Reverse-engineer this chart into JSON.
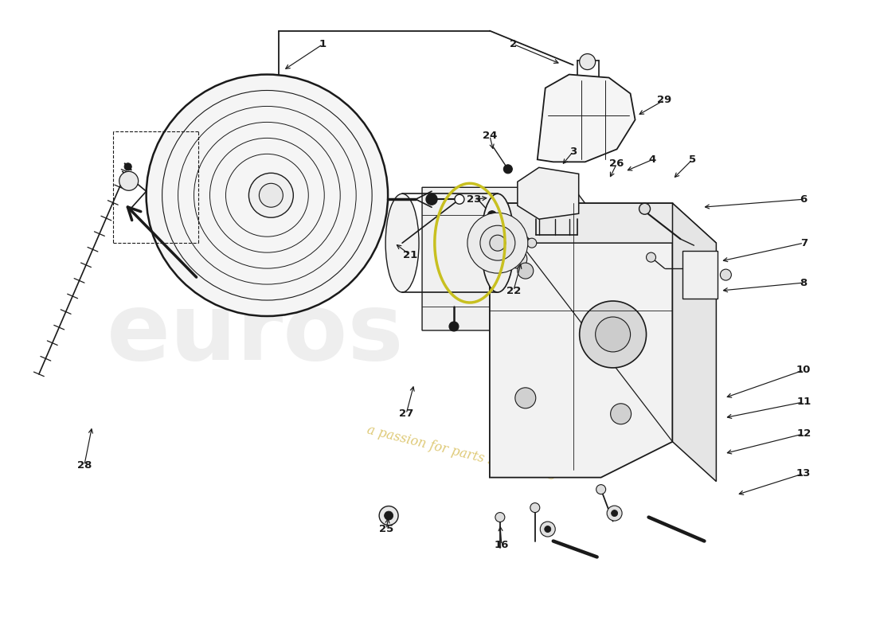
{
  "bg_color": "#ffffff",
  "line_color": "#1a1a1a",
  "watermark_gray": "#c8c8c8",
  "watermark_yellow": "#d4b84a",
  "fig_width": 11.0,
  "fig_height": 8.0,
  "xlim": [
    0,
    11
  ],
  "ylim": [
    0,
    8
  ],
  "parts_labels": [
    [
      "1",
      4.05,
      7.45
    ],
    [
      "2",
      6.45,
      7.45
    ],
    [
      "3",
      7.2,
      6.1
    ],
    [
      "4",
      8.2,
      6.0
    ],
    [
      "5",
      8.7,
      6.0
    ],
    [
      "6",
      10.1,
      5.5
    ],
    [
      "7",
      10.1,
      4.95
    ],
    [
      "8",
      10.1,
      4.45
    ],
    [
      "10",
      10.1,
      3.35
    ],
    [
      "11",
      10.1,
      2.95
    ],
    [
      "12",
      10.1,
      2.55
    ],
    [
      "13",
      10.1,
      2.05
    ],
    [
      "16",
      6.3,
      1.15
    ],
    [
      "21",
      5.15,
      4.8
    ],
    [
      "22",
      6.45,
      4.35
    ],
    [
      "23",
      5.95,
      5.5
    ],
    [
      "24",
      6.15,
      6.3
    ],
    [
      "25",
      4.85,
      1.35
    ],
    [
      "26",
      7.75,
      5.95
    ],
    [
      "27",
      5.1,
      2.8
    ],
    [
      "28",
      1.05,
      2.15
    ],
    [
      "29",
      8.35,
      6.75
    ]
  ]
}
